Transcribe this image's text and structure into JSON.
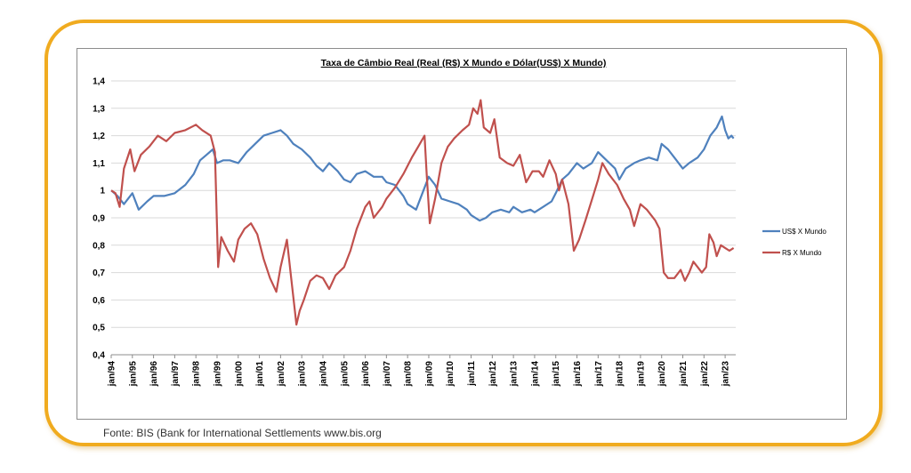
{
  "source": "Fonte: BIS (Bank for International Settlements www.bis.org",
  "chart_data": {
    "type": "line",
    "title": "Taxa de Câmbio Real (Real (R$) X Mundo e Dólar(US$)  X Mundo)",
    "xlabel": "",
    "ylabel": "",
    "ylim": [
      0.4,
      1.4
    ],
    "yticks": [
      "1,4",
      "1,3",
      "1,2",
      "1,1",
      "1",
      "0,9",
      "0,8",
      "0,7",
      "0,6",
      "0,5",
      "0,4"
    ],
    "categories": [
      "jan/94",
      "jan/95",
      "jan/96",
      "jan/97",
      "jan/98",
      "jan/99",
      "jan/00",
      "jan/01",
      "jan/02",
      "jan/03",
      "jan/04",
      "jan/05",
      "jan/06",
      "jan/07",
      "jan/08",
      "jan/09",
      "jan/10",
      "jan/11",
      "jan/12",
      "jan/13",
      "jan/14",
      "jan/15",
      "jan/16",
      "jan/17",
      "jan/18",
      "jan/19",
      "jan/20",
      "jan/21",
      "jan/22",
      "jan/23"
    ],
    "grid": "horizontal",
    "legend": "right",
    "series": [
      {
        "name": "US$ X Mundo",
        "color": "#4f81bd",
        "points": [
          [
            1994.0,
            1.0
          ],
          [
            1994.3,
            0.98
          ],
          [
            1994.6,
            0.95
          ],
          [
            1995.0,
            0.99
          ],
          [
            1995.3,
            0.93
          ],
          [
            1995.7,
            0.96
          ],
          [
            1996.0,
            0.98
          ],
          [
            1996.5,
            0.98
          ],
          [
            1997.0,
            0.99
          ],
          [
            1997.5,
            1.02
          ],
          [
            1997.9,
            1.06
          ],
          [
            1998.2,
            1.11
          ],
          [
            1998.5,
            1.13
          ],
          [
            1998.8,
            1.15
          ],
          [
            1999.0,
            1.1
          ],
          [
            1999.3,
            1.11
          ],
          [
            1999.6,
            1.11
          ],
          [
            2000.0,
            1.1
          ],
          [
            2000.4,
            1.14
          ],
          [
            2000.8,
            1.17
          ],
          [
            2001.2,
            1.2
          ],
          [
            2001.6,
            1.21
          ],
          [
            2002.0,
            1.22
          ],
          [
            2002.3,
            1.2
          ],
          [
            2002.6,
            1.17
          ],
          [
            2003.0,
            1.15
          ],
          [
            2003.4,
            1.12
          ],
          [
            2003.7,
            1.09
          ],
          [
            2004.0,
            1.07
          ],
          [
            2004.3,
            1.1
          ],
          [
            2004.7,
            1.07
          ],
          [
            2005.0,
            1.04
          ],
          [
            2005.3,
            1.03
          ],
          [
            2005.6,
            1.06
          ],
          [
            2006.0,
            1.07
          ],
          [
            2006.4,
            1.05
          ],
          [
            2006.8,
            1.05
          ],
          [
            2007.0,
            1.03
          ],
          [
            2007.4,
            1.02
          ],
          [
            2007.8,
            0.98
          ],
          [
            2008.0,
            0.95
          ],
          [
            2008.4,
            0.93
          ],
          [
            2008.7,
            0.99
          ],
          [
            2009.0,
            1.05
          ],
          [
            2009.3,
            1.02
          ],
          [
            2009.6,
            0.97
          ],
          [
            2010.0,
            0.96
          ],
          [
            2010.4,
            0.95
          ],
          [
            2010.8,
            0.93
          ],
          [
            2011.0,
            0.91
          ],
          [
            2011.4,
            0.89
          ],
          [
            2011.7,
            0.9
          ],
          [
            2012.0,
            0.92
          ],
          [
            2012.4,
            0.93
          ],
          [
            2012.8,
            0.92
          ],
          [
            2013.0,
            0.94
          ],
          [
            2013.4,
            0.92
          ],
          [
            2013.8,
            0.93
          ],
          [
            2014.0,
            0.92
          ],
          [
            2014.4,
            0.94
          ],
          [
            2014.8,
            0.96
          ],
          [
            2015.0,
            0.99
          ],
          [
            2015.3,
            1.04
          ],
          [
            2015.6,
            1.06
          ],
          [
            2016.0,
            1.1
          ],
          [
            2016.3,
            1.08
          ],
          [
            2016.7,
            1.1
          ],
          [
            2017.0,
            1.14
          ],
          [
            2017.4,
            1.11
          ],
          [
            2017.8,
            1.08
          ],
          [
            2018.0,
            1.04
          ],
          [
            2018.3,
            1.08
          ],
          [
            2018.7,
            1.1
          ],
          [
            2019.0,
            1.11
          ],
          [
            2019.4,
            1.12
          ],
          [
            2019.8,
            1.11
          ],
          [
            2020.0,
            1.17
          ],
          [
            2020.3,
            1.15
          ],
          [
            2020.6,
            1.12
          ],
          [
            2021.0,
            1.08
          ],
          [
            2021.3,
            1.1
          ],
          [
            2021.7,
            1.12
          ],
          [
            2022.0,
            1.15
          ],
          [
            2022.3,
            1.2
          ],
          [
            2022.6,
            1.23
          ],
          [
            2022.85,
            1.27
          ],
          [
            2023.0,
            1.22
          ],
          [
            2023.15,
            1.19
          ],
          [
            2023.3,
            1.2
          ],
          [
            2023.4,
            1.19
          ]
        ]
      },
      {
        "name": "R$ X Mundo",
        "color": "#c0504d",
        "points": [
          [
            1994.0,
            1.0
          ],
          [
            1994.2,
            0.99
          ],
          [
            1994.4,
            0.94
          ],
          [
            1994.6,
            1.08
          ],
          [
            1994.9,
            1.15
          ],
          [
            1995.1,
            1.07
          ],
          [
            1995.4,
            1.13
          ],
          [
            1995.8,
            1.16
          ],
          [
            1996.2,
            1.2
          ],
          [
            1996.6,
            1.18
          ],
          [
            1997.0,
            1.21
          ],
          [
            1997.5,
            1.22
          ],
          [
            1998.0,
            1.24
          ],
          [
            1998.3,
            1.22
          ],
          [
            1998.7,
            1.2
          ],
          [
            1998.9,
            1.14
          ],
          [
            1999.05,
            0.72
          ],
          [
            1999.2,
            0.83
          ],
          [
            1999.5,
            0.78
          ],
          [
            1999.8,
            0.74
          ],
          [
            2000.0,
            0.82
          ],
          [
            2000.3,
            0.86
          ],
          [
            2000.6,
            0.88
          ],
          [
            2000.9,
            0.84
          ],
          [
            2001.2,
            0.75
          ],
          [
            2001.5,
            0.68
          ],
          [
            2001.8,
            0.63
          ],
          [
            2002.0,
            0.72
          ],
          [
            2002.3,
            0.82
          ],
          [
            2002.5,
            0.68
          ],
          [
            2002.75,
            0.51
          ],
          [
            2002.9,
            0.56
          ],
          [
            2003.1,
            0.6
          ],
          [
            2003.4,
            0.67
          ],
          [
            2003.7,
            0.69
          ],
          [
            2004.0,
            0.68
          ],
          [
            2004.3,
            0.64
          ],
          [
            2004.6,
            0.69
          ],
          [
            2005.0,
            0.72
          ],
          [
            2005.3,
            0.78
          ],
          [
            2005.6,
            0.86
          ],
          [
            2006.0,
            0.94
          ],
          [
            2006.2,
            0.96
          ],
          [
            2006.4,
            0.9
          ],
          [
            2006.8,
            0.94
          ],
          [
            2007.0,
            0.97
          ],
          [
            2007.4,
            1.01
          ],
          [
            2007.8,
            1.06
          ],
          [
            2008.2,
            1.12
          ],
          [
            2008.5,
            1.16
          ],
          [
            2008.8,
            1.2
          ],
          [
            2008.9,
            1.06
          ],
          [
            2009.05,
            0.88
          ],
          [
            2009.3,
            0.97
          ],
          [
            2009.6,
            1.1
          ],
          [
            2009.9,
            1.16
          ],
          [
            2010.2,
            1.19
          ],
          [
            2010.6,
            1.22
          ],
          [
            2010.9,
            1.24
          ],
          [
            2011.1,
            1.3
          ],
          [
            2011.3,
            1.28
          ],
          [
            2011.45,
            1.33
          ],
          [
            2011.6,
            1.23
          ],
          [
            2011.9,
            1.21
          ],
          [
            2012.1,
            1.26
          ],
          [
            2012.35,
            1.12
          ],
          [
            2012.7,
            1.1
          ],
          [
            2013.0,
            1.09
          ],
          [
            2013.3,
            1.13
          ],
          [
            2013.6,
            1.03
          ],
          [
            2013.9,
            1.07
          ],
          [
            2014.2,
            1.07
          ],
          [
            2014.4,
            1.05
          ],
          [
            2014.7,
            1.11
          ],
          [
            2015.0,
            1.06
          ],
          [
            2015.15,
            1.0
          ],
          [
            2015.3,
            1.04
          ],
          [
            2015.6,
            0.95
          ],
          [
            2015.85,
            0.78
          ],
          [
            2016.1,
            0.82
          ],
          [
            2016.4,
            0.89
          ],
          [
            2016.8,
            0.99
          ],
          [
            2017.0,
            1.04
          ],
          [
            2017.2,
            1.1
          ],
          [
            2017.5,
            1.06
          ],
          [
            2017.9,
            1.02
          ],
          [
            2018.2,
            0.97
          ],
          [
            2018.5,
            0.93
          ],
          [
            2018.7,
            0.87
          ],
          [
            2019.0,
            0.95
          ],
          [
            2019.3,
            0.93
          ],
          [
            2019.7,
            0.89
          ],
          [
            2019.9,
            0.86
          ],
          [
            2020.1,
            0.7
          ],
          [
            2020.3,
            0.68
          ],
          [
            2020.6,
            0.68
          ],
          [
            2020.9,
            0.71
          ],
          [
            2021.1,
            0.67
          ],
          [
            2021.3,
            0.7
          ],
          [
            2021.5,
            0.74
          ],
          [
            2021.7,
            0.72
          ],
          [
            2021.9,
            0.7
          ],
          [
            2022.1,
            0.72
          ],
          [
            2022.25,
            0.84
          ],
          [
            2022.45,
            0.81
          ],
          [
            2022.6,
            0.76
          ],
          [
            2022.8,
            0.8
          ],
          [
            2023.0,
            0.79
          ],
          [
            2023.2,
            0.78
          ],
          [
            2023.4,
            0.79
          ]
        ]
      }
    ]
  }
}
